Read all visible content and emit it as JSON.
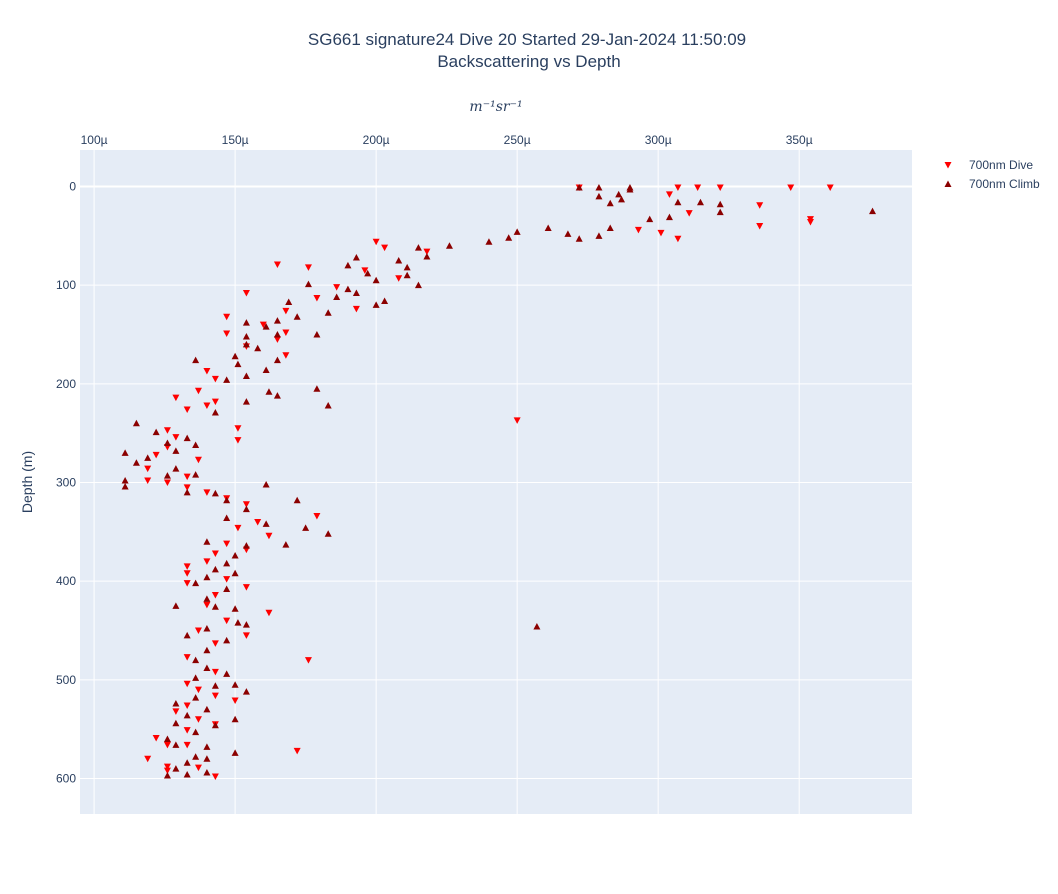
{
  "chart_data": {
    "type": "scatter",
    "title_line1": "SG661 signature24 Dive 20 Started 29-Jan-2024 11:50:09",
    "title_line2": "Backscattering vs Depth",
    "xlabel": "m⁻¹sr⁻¹",
    "ylabel": "Depth (m)",
    "xlim": [
      9.5e-05,
      0.00039
    ],
    "ylim": [
      -37,
      636
    ],
    "x_ticks": [
      0.0001,
      0.00015,
      0.0002,
      0.00025,
      0.0003,
      0.00035
    ],
    "x_tick_labels": [
      "100µ",
      "150µ",
      "200µ",
      "250µ",
      "300µ",
      "350µ"
    ],
    "y_ticks": [
      0,
      100,
      200,
      300,
      400,
      500,
      600
    ],
    "y_tick_labels": [
      "0",
      "100",
      "200",
      "300",
      "400",
      "500",
      "600"
    ],
    "x_axis_position": "top",
    "y_reversed": true,
    "grid": true,
    "legend_position": "top-right",
    "series": [
      {
        "name": "700nm Dive",
        "color": "#ff0000",
        "marker": "triangle-down",
        "points": [
          [
            0.000272,
            1
          ],
          [
            0.000307,
            1
          ],
          [
            0.000314,
            1
          ],
          [
            0.000322,
            1
          ],
          [
            0.000347,
            1
          ],
          [
            0.000361,
            1
          ],
          [
            0.000304,
            8
          ],
          [
            0.000336,
            19
          ],
          [
            0.000311,
            27
          ],
          [
            0.000354,
            33
          ],
          [
            0.000354,
            36
          ],
          [
            0.000336,
            40
          ],
          [
            0.000293,
            44
          ],
          [
            0.000301,
            47
          ],
          [
            0.000307,
            53
          ],
          [
            0.0002,
            56
          ],
          [
            0.000203,
            62
          ],
          [
            0.000218,
            66
          ],
          [
            0.000165,
            79
          ],
          [
            0.000176,
            82
          ],
          [
            0.000196,
            85
          ],
          [
            0.000208,
            93
          ],
          [
            0.000186,
            102
          ],
          [
            0.000154,
            108
          ],
          [
            0.000179,
            113
          ],
          [
            0.000193,
            124
          ],
          [
            0.000168,
            126
          ],
          [
            0.000147,
            132
          ],
          [
            0.00016,
            140
          ],
          [
            0.000168,
            148
          ],
          [
            0.000147,
            149
          ],
          [
            0.000165,
            155
          ],
          [
            0.000154,
            162
          ],
          [
            0.000168,
            171
          ],
          [
            0.00014,
            187
          ],
          [
            0.000143,
            195
          ],
          [
            0.000137,
            207
          ],
          [
            0.000129,
            214
          ],
          [
            0.000143,
            218
          ],
          [
            0.00014,
            222
          ],
          [
            0.000133,
            226
          ],
          [
            0.000151,
            245
          ],
          [
            0.000151,
            257
          ],
          [
            0.00025,
            237
          ],
          [
            0.000126,
            247
          ],
          [
            0.000129,
            254
          ],
          [
            0.000126,
            264
          ],
          [
            0.000122,
            272
          ],
          [
            0.000137,
            277
          ],
          [
            0.000119,
            286
          ],
          [
            0.000133,
            294
          ],
          [
            0.000119,
            298
          ],
          [
            0.000126,
            300
          ],
          [
            0.000133,
            305
          ],
          [
            0.00014,
            310
          ],
          [
            0.000147,
            316
          ],
          [
            0.000154,
            322
          ],
          [
            0.000179,
            334
          ],
          [
            0.000158,
            340
          ],
          [
            0.000151,
            346
          ],
          [
            0.000162,
            354
          ],
          [
            0.000147,
            362
          ],
          [
            0.000154,
            368
          ],
          [
            0.000143,
            372
          ],
          [
            0.00014,
            380
          ],
          [
            0.000133,
            385
          ],
          [
            0.000133,
            392
          ],
          [
            0.000147,
            398
          ],
          [
            0.000133,
            402
          ],
          [
            0.000154,
            406
          ],
          [
            0.000143,
            414
          ],
          [
            0.000162,
            432
          ],
          [
            0.00014,
            424
          ],
          [
            0.000147,
            440
          ],
          [
            0.000137,
            450
          ],
          [
            0.000154,
            455
          ],
          [
            0.000143,
            463
          ],
          [
            0.000176,
            480
          ],
          [
            0.000133,
            477
          ],
          [
            0.000143,
            492
          ],
          [
            0.000133,
            504
          ],
          [
            0.000137,
            510
          ],
          [
            0.000143,
            516
          ],
          [
            0.00015,
            521
          ],
          [
            0.000133,
            526
          ],
          [
            0.000129,
            532
          ],
          [
            0.000137,
            540
          ],
          [
            0.000143,
            545
          ],
          [
            0.000133,
            551
          ],
          [
            0.000122,
            559
          ],
          [
            0.000133,
            566
          ],
          [
            0.000126,
            566
          ],
          [
            0.000172,
            572
          ],
          [
            0.000119,
            580
          ],
          [
            0.000126,
            588
          ],
          [
            0.000126,
            592
          ],
          [
            0.000143,
            598
          ],
          [
            0.000137,
            589
          ]
        ]
      },
      {
        "name": "700nm Climb",
        "color": "#8b0000",
        "marker": "triangle-up",
        "points": [
          [
            0.000279,
            1
          ],
          [
            0.00029,
            1
          ],
          [
            0.000272,
            1
          ],
          [
            0.000286,
            8
          ],
          [
            0.00029,
            3
          ],
          [
            0.000279,
            10
          ],
          [
            0.000283,
            17
          ],
          [
            0.000287,
            13
          ],
          [
            0.000307,
            16
          ],
          [
            0.000315,
            16
          ],
          [
            0.000322,
            18
          ],
          [
            0.000322,
            26
          ],
          [
            0.000297,
            33
          ],
          [
            0.000304,
            31
          ],
          [
            0.000376,
            25
          ],
          [
            0.000283,
            42
          ],
          [
            0.000261,
            42
          ],
          [
            0.00025,
            46
          ],
          [
            0.000247,
            52
          ],
          [
            0.000268,
            48
          ],
          [
            0.000279,
            50
          ],
          [
            0.000272,
            53
          ],
          [
            0.00024,
            56
          ],
          [
            0.000226,
            60
          ],
          [
            0.000215,
            62
          ],
          [
            0.000208,
            75
          ],
          [
            0.000211,
            82
          ],
          [
            0.000218,
            71
          ],
          [
            0.000193,
            72
          ],
          [
            0.00019,
            80
          ],
          [
            0.000197,
            88
          ],
          [
            0.000211,
            90
          ],
          [
            0.0002,
            95
          ],
          [
            0.000215,
            100
          ],
          [
            0.00019,
            104
          ],
          [
            0.000193,
            108
          ],
          [
            0.000186,
            112
          ],
          [
            0.000203,
            116
          ],
          [
            0.0002,
            120
          ],
          [
            0.000176,
            99
          ],
          [
            0.000169,
            117
          ],
          [
            0.000183,
            128
          ],
          [
            0.000172,
            132
          ],
          [
            0.000165,
            136
          ],
          [
            0.000154,
            138
          ],
          [
            0.000161,
            142
          ],
          [
            0.000154,
            152
          ],
          [
            0.000165,
            150
          ],
          [
            0.000179,
            150
          ],
          [
            0.000154,
            160
          ],
          [
            0.000158,
            164
          ],
          [
            0.00015,
            172
          ],
          [
            0.000165,
            176
          ],
          [
            0.000136,
            176
          ],
          [
            0.000151,
            180
          ],
          [
            0.000161,
            186
          ],
          [
            0.000154,
            192
          ],
          [
            0.000147,
            196
          ],
          [
            0.000162,
            208
          ],
          [
            0.000165,
            212
          ],
          [
            0.000179,
            205
          ],
          [
            0.000183,
            222
          ],
          [
            0.000154,
            218
          ],
          [
            0.000143,
            229
          ],
          [
            0.000115,
            240
          ],
          [
            0.000122,
            249
          ],
          [
            0.000126,
            260
          ],
          [
            0.000133,
            255
          ],
          [
            0.000136,
            262
          ],
          [
            0.000129,
            268
          ],
          [
            0.000119,
            275
          ],
          [
            0.000111,
            270
          ],
          [
            0.000115,
            280
          ],
          [
            0.000129,
            286
          ],
          [
            0.000136,
            292
          ],
          [
            0.000126,
            293
          ],
          [
            0.000111,
            298
          ],
          [
            0.000111,
            304
          ],
          [
            0.000133,
            310
          ],
          [
            0.000143,
            311
          ],
          [
            0.000147,
            318
          ],
          [
            0.000161,
            302
          ],
          [
            0.000172,
            318
          ],
          [
            0.000154,
            327
          ],
          [
            0.000147,
            336
          ],
          [
            0.000161,
            342
          ],
          [
            0.000183,
            352
          ],
          [
            0.000175,
            346
          ],
          [
            0.000168,
            363
          ],
          [
            0.000154,
            364
          ],
          [
            0.00014,
            360
          ],
          [
            0.00015,
            374
          ],
          [
            0.000147,
            382
          ],
          [
            0.000143,
            388
          ],
          [
            0.00014,
            396
          ],
          [
            0.00015,
            392
          ],
          [
            0.000136,
            402
          ],
          [
            0.000147,
            408
          ],
          [
            0.00014,
            418
          ],
          [
            0.000143,
            426
          ],
          [
            0.00015,
            428
          ],
          [
            0.000151,
            442
          ],
          [
            0.000154,
            444
          ],
          [
            0.00014,
            448
          ],
          [
            0.000129,
            425
          ],
          [
            0.000133,
            455
          ],
          [
            0.000257,
            446
          ],
          [
            0.000147,
            460
          ],
          [
            0.00014,
            470
          ],
          [
            0.000136,
            480
          ],
          [
            0.00014,
            488
          ],
          [
            0.000147,
            494
          ],
          [
            0.000136,
            498
          ],
          [
            0.00015,
            505
          ],
          [
            0.000143,
            506
          ],
          [
            0.000154,
            512
          ],
          [
            0.000136,
            518
          ],
          [
            0.000129,
            524
          ],
          [
            0.00014,
            530
          ],
          [
            0.000133,
            536
          ],
          [
            0.00015,
            540
          ],
          [
            0.000129,
            544
          ],
          [
            0.000136,
            553
          ],
          [
            0.000143,
            546
          ],
          [
            0.000126,
            560
          ],
          [
            0.000129,
            566
          ],
          [
            0.00014,
            568
          ],
          [
            0.00015,
            574
          ],
          [
            0.000136,
            578
          ],
          [
            0.00014,
            580
          ],
          [
            0.000133,
            584
          ],
          [
            0.000129,
            590
          ],
          [
            0.000126,
            597
          ],
          [
            0.000133,
            596
          ],
          [
            0.00014,
            594
          ]
        ]
      }
    ]
  }
}
